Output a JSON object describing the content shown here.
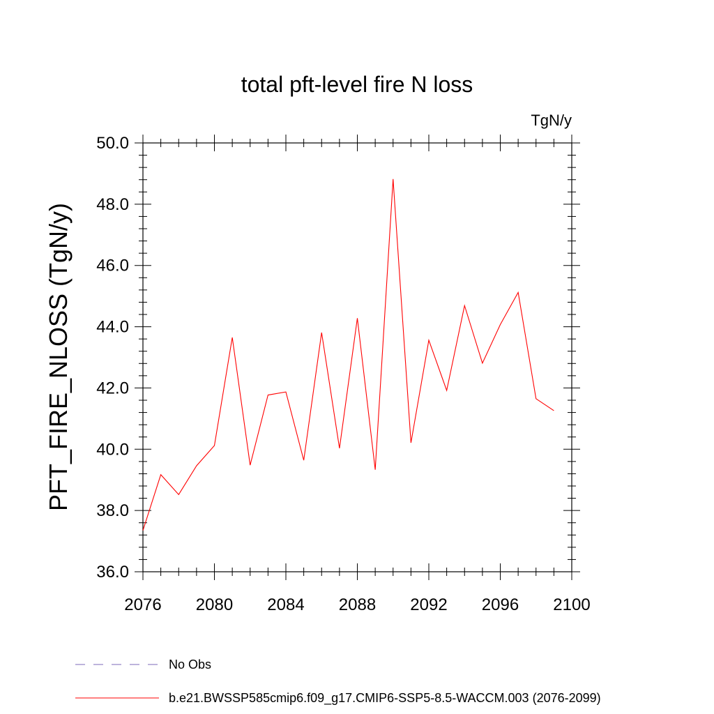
{
  "chart_data": {
    "type": "line",
    "title": "total pft-level fire N loss",
    "units": "TgN/y",
    "ylabel": "PFT_FIRE_NLOSS  (TgN/y)",
    "xlabel": "",
    "xlim": [
      2076,
      2100
    ],
    "ylim": [
      36.0,
      50.0
    ],
    "x_ticks": [
      "2076",
      "2080",
      "2084",
      "2088",
      "2092",
      "2096",
      "2100"
    ],
    "y_ticks": [
      "36.0",
      "38.0",
      "40.0",
      "42.0",
      "44.0",
      "46.0",
      "48.0",
      "50.0"
    ],
    "grid": false,
    "legend_position": "bottom-left",
    "series": [
      {
        "name": "b.e21.BWSSP585cmip6.f09_g17.CMIP6-SSP5-8.5-WACCM.003 (2076-2099)",
        "color": "#ff0000",
        "style": "solid",
        "x": [
          2076,
          2077,
          2078,
          2079,
          2080,
          2081,
          2082,
          2083,
          2084,
          2085,
          2086,
          2087,
          2088,
          2089,
          2090,
          2091,
          2092,
          2093,
          2094,
          2095,
          2096,
          2097,
          2098,
          2099
        ],
        "y": [
          37.35,
          39.17,
          38.52,
          39.46,
          40.12,
          43.65,
          39.48,
          41.77,
          41.87,
          39.64,
          43.81,
          40.03,
          44.28,
          39.33,
          48.82,
          40.21,
          43.56,
          41.92,
          44.69,
          42.81,
          44.07,
          45.12,
          41.65,
          41.26
        ]
      },
      {
        "name": "No Obs",
        "color": "#7b68b8",
        "style": "dashed",
        "x": [],
        "y": []
      }
    ]
  }
}
